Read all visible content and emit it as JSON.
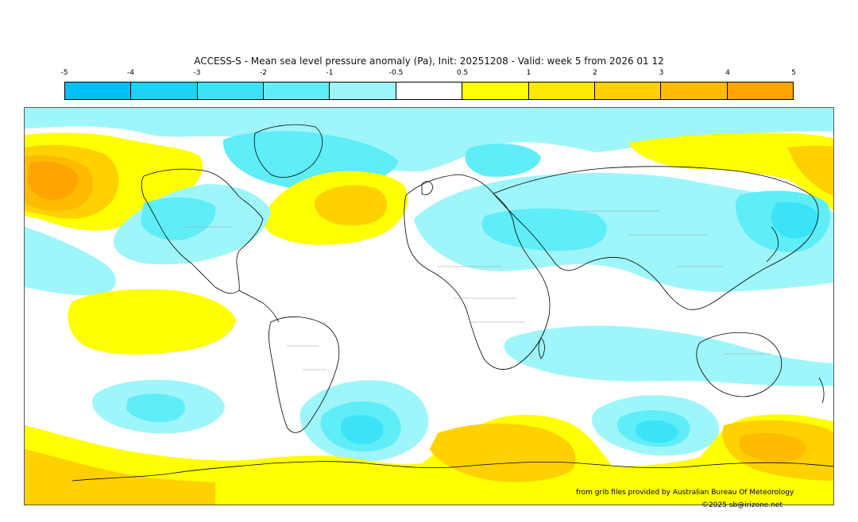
{
  "title": "ACCESS-S - Mean sea level pressure anomaly (Pa), Init: 20251208 - Valid: week 5 from 2026 01 12",
  "colorbar": {
    "ticks": [
      "-5",
      "-4",
      "-3",
      "-2",
      "-1",
      "-0.5",
      "0.5",
      "1",
      "2",
      "3",
      "4",
      "5"
    ],
    "colors": [
      "#00bff3",
      "#1ad3f5",
      "#3ae3f7",
      "#5fedf8",
      "#9ef6fa",
      "#ffffff",
      "#ffff00",
      "#ffe800",
      "#ffd100",
      "#ffbb00",
      "#ffa400"
    ]
  },
  "credits": {
    "source": "from grib files provided by Australian Bureau Of Meteorology",
    "copyright": "©2025 sb@irizone.net"
  }
}
